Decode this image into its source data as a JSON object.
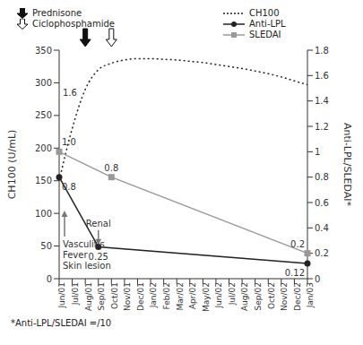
{
  "chart_data": {
    "type": "line",
    "legend": "top",
    "categories": [
      "Jun/01",
      "Jul/01",
      "Aug/01",
      "Sep/01",
      "Oct/01",
      "Nov/01",
      "Dec/01",
      "Jan/02",
      "Feb/02",
      "Mar/02",
      "Apr/02",
      "May/02",
      "Jun/02",
      "Jul/02",
      "Aug/02",
      "Sep/02",
      "Oct/02",
      "Nov/02",
      "Dec/02",
      "Jan/03"
    ],
    "y_label": "CH100 (U/mL)",
    "y2_label": "Anti-LPL/SLEDAI*",
    "ylim": [
      0,
      350
    ],
    "yticks": [
      0,
      50,
      100,
      150,
      200,
      250,
      300,
      350
    ],
    "y2lim": [
      0,
      1.8
    ],
    "y2ticks": [
      0,
      0.2,
      0.4,
      0.6,
      0.8,
      1,
      1.2,
      1.4,
      1.6,
      1.8
    ],
    "series": [
      {
        "name": "CH100",
        "color": "#222222",
        "line_style": "dotted",
        "marker": "none",
        "axis": "y",
        "values": [
          150,
          230,
          290,
          320,
          330,
          335,
          337,
          337,
          336,
          335,
          333,
          331,
          328,
          325,
          322,
          318,
          314,
          309,
          303,
          297
        ]
      },
      {
        "name": "Anti-LPL",
        "color": "#222222",
        "line_style": "solid",
        "marker": "circle",
        "axis": "y2",
        "data_labels": true,
        "values": [
          0.8,
          null,
          null,
          0.25,
          null,
          null,
          null,
          null,
          null,
          null,
          null,
          null,
          null,
          null,
          null,
          null,
          null,
          null,
          null,
          0.12
        ]
      },
      {
        "name": "SLEDAI",
        "color": "#999999",
        "line_style": "solid",
        "marker": "square",
        "axis": "y2",
        "data_labels": true,
        "values": [
          1,
          null,
          null,
          null,
          0.8,
          null,
          null,
          null,
          null,
          null,
          null,
          null,
          null,
          null,
          null,
          null,
          null,
          null,
          null,
          0.2
        ],
        "value_labels": [
          "1.0",
          null,
          null,
          null,
          "0.8",
          null,
          null,
          null,
          null,
          null,
          null,
          null,
          null,
          null,
          null,
          null,
          null,
          null,
          null,
          "0.2"
        ]
      }
    ],
    "events": [
      {
        "name": "Prednisone",
        "x": "Aug/01",
        "marker": "filled"
      },
      {
        "name": "Ciclophosphamide",
        "x": "Oct/01",
        "marker": "hollow"
      }
    ],
    "annotations": [
      {
        "text": [
          "Vasculitis",
          "Fever",
          "Skin lesion"
        ],
        "x": "Jun/01",
        "y": 48,
        "arrow": "up"
      },
      {
        "text": [
          "Renal"
        ],
        "x": "Sep/01",
        "y": 80,
        "arrow": "down"
      },
      {
        "text": [
          "1.6"
        ],
        "x": "Jun/01",
        "y": 280,
        "arrow": "none"
      }
    ],
    "footnote": "*Anti-LPL/SLEDAI =/10"
  }
}
